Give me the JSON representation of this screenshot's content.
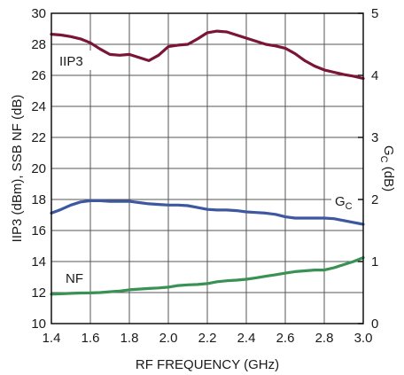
{
  "chart_data": {
    "type": "line",
    "title": "",
    "xlabel": "RF FREQUENCY (GHz)",
    "ylabel": "IIP3 (dBm), SSB NF (dB)",
    "y2label_main": "G",
    "y2label_sub": "C",
    "y2label_unit": " (dB)",
    "xlim": [
      1.4,
      3.0
    ],
    "ylim": [
      10,
      30
    ],
    "y2lim": [
      0,
      5
    ],
    "xticks": [
      "1.4",
      "1.6",
      "1.8",
      "2.0",
      "2.2",
      "2.4",
      "2.6",
      "2.8",
      "3.0"
    ],
    "yticks": [
      "10",
      "12",
      "14",
      "16",
      "18",
      "20",
      "22",
      "24",
      "26",
      "28",
      "30"
    ],
    "y2ticks": [
      "0",
      "1",
      "2",
      "3",
      "4",
      "5"
    ],
    "grid": true,
    "series": [
      {
        "name": "IIP3",
        "axis": "left",
        "color": "#7a1535",
        "label_main": "IIP3",
        "label_sub": "",
        "x": [
          1.4,
          1.45,
          1.5,
          1.55,
          1.6,
          1.65,
          1.7,
          1.75,
          1.8,
          1.85,
          1.9,
          1.95,
          2.0,
          2.05,
          2.1,
          2.15,
          2.2,
          2.25,
          2.3,
          2.35,
          2.4,
          2.45,
          2.5,
          2.55,
          2.6,
          2.65,
          2.7,
          2.75,
          2.8,
          2.85,
          2.9,
          2.95,
          3.0
        ],
        "y": [
          28.65,
          28.6,
          28.5,
          28.35,
          28.1,
          27.7,
          27.35,
          27.3,
          27.35,
          27.15,
          26.95,
          27.3,
          27.85,
          27.95,
          28.0,
          28.35,
          28.75,
          28.85,
          28.8,
          28.6,
          28.4,
          28.2,
          28.0,
          27.9,
          27.75,
          27.4,
          26.95,
          26.6,
          26.35,
          26.2,
          26.05,
          25.95,
          25.8
        ]
      },
      {
        "name": "GC",
        "axis": "right",
        "color": "#3d58a0",
        "label_main": "G",
        "label_sub": "C",
        "x": [
          1.4,
          1.45,
          1.5,
          1.55,
          1.6,
          1.65,
          1.7,
          1.75,
          1.8,
          1.85,
          1.9,
          1.95,
          2.0,
          2.05,
          2.1,
          2.15,
          2.2,
          2.25,
          2.3,
          2.35,
          2.4,
          2.45,
          2.5,
          2.55,
          2.6,
          2.65,
          2.7,
          2.75,
          2.8,
          2.85,
          2.9,
          2.95,
          3.0
        ],
        "y": [
          1.78,
          1.84,
          1.91,
          1.96,
          1.98,
          1.98,
          1.97,
          1.97,
          1.97,
          1.95,
          1.93,
          1.92,
          1.91,
          1.91,
          1.9,
          1.87,
          1.84,
          1.83,
          1.83,
          1.82,
          1.8,
          1.79,
          1.78,
          1.76,
          1.72,
          1.7,
          1.7,
          1.7,
          1.7,
          1.69,
          1.66,
          1.63,
          1.6
        ]
      },
      {
        "name": "NF",
        "axis": "left",
        "color": "#3a9154",
        "label_main": "NF",
        "label_sub": "",
        "x": [
          1.4,
          1.45,
          1.5,
          1.55,
          1.6,
          1.65,
          1.7,
          1.75,
          1.8,
          1.85,
          1.9,
          1.95,
          2.0,
          2.05,
          2.1,
          2.15,
          2.2,
          2.25,
          2.3,
          2.35,
          2.4,
          2.45,
          2.5,
          2.55,
          2.6,
          2.65,
          2.7,
          2.75,
          2.8,
          2.85,
          2.9,
          2.95,
          3.0
        ],
        "y": [
          11.9,
          11.92,
          11.95,
          11.97,
          11.98,
          12.0,
          12.05,
          12.1,
          12.18,
          12.22,
          12.26,
          12.3,
          12.35,
          12.45,
          12.5,
          12.52,
          12.58,
          12.7,
          12.76,
          12.8,
          12.86,
          12.95,
          13.05,
          13.15,
          13.25,
          13.35,
          13.4,
          13.45,
          13.45,
          13.6,
          13.8,
          14.0,
          14.25
        ]
      }
    ]
  }
}
